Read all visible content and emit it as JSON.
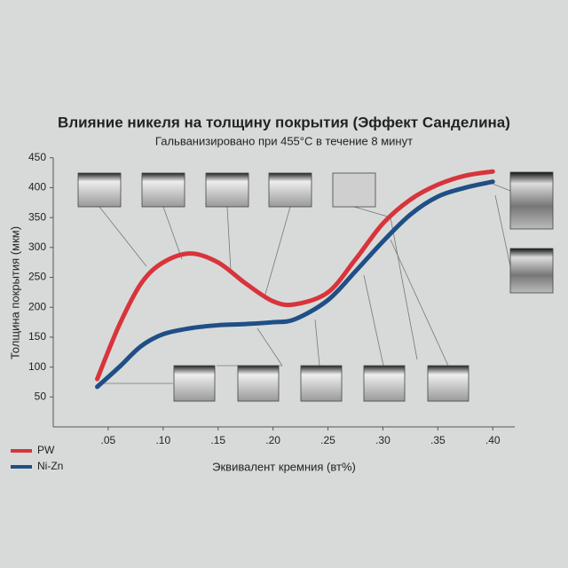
{
  "chart_data": {
    "type": "line",
    "title": "Влияние никеля на толщину покрытия (Эффект Санделина)",
    "subtitle": "Гальванизировано при 455°С в течение 8 минут",
    "x_label": "Эквивалент кремния (вт%)",
    "y_label": "Толщина покрытия (мкм)",
    "x": [
      0.04,
      0.06,
      0.08,
      0.1,
      0.125,
      0.15,
      0.175,
      0.2,
      0.22,
      0.25,
      0.275,
      0.3,
      0.325,
      0.35,
      0.375,
      0.4
    ],
    "series": [
      {
        "name": "PW",
        "color": "#d8343b",
        "values": [
          80,
          170,
          240,
          275,
          290,
          275,
          240,
          210,
          205,
          225,
          280,
          340,
          380,
          405,
          420,
          427
        ]
      },
      {
        "name": "Ni-Zn",
        "color": "#1f4f86",
        "values": [
          67,
          100,
          135,
          155,
          165,
          170,
          172,
          175,
          180,
          212,
          260,
          310,
          355,
          385,
          400,
          410
        ]
      }
    ],
    "xlim": [
      0,
      0.42
    ],
    "ylim": [
      0,
      460
    ],
    "xticks": [
      {
        "value": 0.05,
        "label": ".05"
      },
      {
        "value": 0.1,
        "label": ".10"
      },
      {
        "value": 0.15,
        "label": ".15"
      },
      {
        "value": 0.2,
        "label": ".20"
      },
      {
        "value": 0.25,
        "label": ".25"
      },
      {
        "value": 0.3,
        "label": ".30"
      },
      {
        "value": 0.35,
        "label": ".35"
      },
      {
        "value": 0.4,
        "label": ".40"
      }
    ],
    "yticks": [
      50,
      100,
      150,
      200,
      250,
      300,
      350,
      400,
      450
    ],
    "legend": "bottom-left"
  }
}
